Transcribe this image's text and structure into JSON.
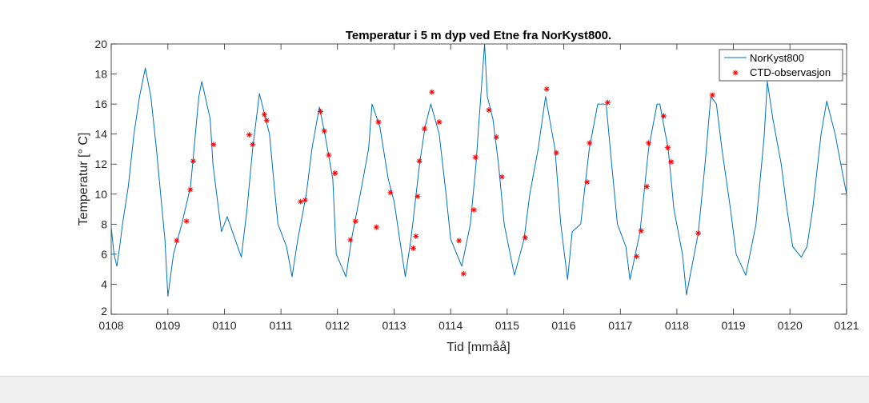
{
  "chart_data": {
    "type": "line",
    "title": "Temperatur i 5 m dyp ved Etne fra NorKyst800.",
    "xlabel": "Tid [mmåå]",
    "ylabel": "Temperatur [° C]",
    "ylabel_parts": {
      "main": "Temperatur [",
      "sup": "o",
      "end": " C]"
    },
    "xlim": [
      "2008-01-01",
      "2021-01-01"
    ],
    "ylim": [
      2,
      20
    ],
    "x_ticks": [
      {
        "date": "2008-01-01",
        "label": "0108"
      },
      {
        "date": "2009-01-01",
        "label": "0109"
      },
      {
        "date": "2010-01-01",
        "label": "0110"
      },
      {
        "date": "2011-01-01",
        "label": "0111"
      },
      {
        "date": "2012-01-01",
        "label": "0112"
      },
      {
        "date": "2013-01-01",
        "label": "0113"
      },
      {
        "date": "2014-01-01",
        "label": "0114"
      },
      {
        "date": "2015-01-01",
        "label": "0115"
      },
      {
        "date": "2016-01-01",
        "label": "0116"
      },
      {
        "date": "2017-01-01",
        "label": "0117"
      },
      {
        "date": "2018-01-01",
        "label": "0118"
      },
      {
        "date": "2019-01-01",
        "label": "0119"
      },
      {
        "date": "2020-01-01",
        "label": "0120"
      },
      {
        "date": "2021-01-01",
        "label": "0121"
      }
    ],
    "y_ticks": [
      2,
      4,
      6,
      8,
      10,
      12,
      14,
      16,
      18,
      20
    ],
    "grid": false,
    "legend_position": "top-right",
    "series": [
      {
        "name": "NorKyst800",
        "style": "line",
        "color": "#0072bd",
        "points": [
          [
            "2008-01-01",
            7.8
          ],
          [
            "2008-01-19",
            6.0
          ],
          [
            "2008-02-06",
            5.2
          ],
          [
            "2008-02-25",
            6.5
          ],
          [
            "2008-03-14",
            8.0
          ],
          [
            "2008-04-20",
            10.5
          ],
          [
            "2008-05-27",
            14.0
          ],
          [
            "2008-07-02",
            16.5
          ],
          [
            "2008-08-08",
            18.4
          ],
          [
            "2008-09-13",
            16.5
          ],
          [
            "2008-10-19",
            13.0
          ],
          [
            "2008-11-24",
            9.0
          ],
          [
            "2008-12-13",
            7.0
          ],
          [
            "2009-01-01",
            3.2
          ],
          [
            "2009-02-06",
            6.0
          ],
          [
            "2009-04-01",
            8.0
          ],
          [
            "2009-05-27",
            10.5
          ],
          [
            "2009-07-20",
            16.5
          ],
          [
            "2009-08-08",
            17.5
          ],
          [
            "2009-10-01",
            15.0
          ],
          [
            "2009-10-19",
            12.0
          ],
          [
            "2009-11-24",
            9.0
          ],
          [
            "2009-12-13",
            7.5
          ],
          [
            "2010-01-19",
            8.5
          ],
          [
            "2010-04-20",
            5.8
          ],
          [
            "2010-05-27",
            9.0
          ],
          [
            "2010-07-02",
            13.0
          ],
          [
            "2010-08-15",
            16.7
          ],
          [
            "2010-10-19",
            14.0
          ],
          [
            "2010-11-24",
            10.0
          ],
          [
            "2010-12-13",
            8.0
          ],
          [
            "2011-02-06",
            6.5
          ],
          [
            "2011-03-14",
            4.5
          ],
          [
            "2011-04-20",
            7.0
          ],
          [
            "2011-06-14",
            10.0
          ],
          [
            "2011-07-20",
            13.0
          ],
          [
            "2011-09-06",
            15.8
          ],
          [
            "2011-10-12",
            14.0
          ],
          [
            "2011-12-02",
            11.0
          ],
          [
            "2011-12-24",
            6.0
          ],
          [
            "2012-02-25",
            4.5
          ],
          [
            "2012-04-01",
            7.0
          ],
          [
            "2012-05-27",
            10.0
          ],
          [
            "2012-07-20",
            13.0
          ],
          [
            "2012-08-11",
            16.0
          ],
          [
            "2012-10-01",
            14.5
          ],
          [
            "2012-11-24",
            11.0
          ],
          [
            "2013-01-01",
            9.5
          ],
          [
            "2013-02-06",
            7.0
          ],
          [
            "2013-03-14",
            4.5
          ],
          [
            "2013-04-20",
            7.0
          ],
          [
            "2013-06-14",
            12.0
          ],
          [
            "2013-07-20",
            14.5
          ],
          [
            "2013-08-26",
            16.0
          ],
          [
            "2013-10-19",
            14.0
          ],
          [
            "2013-12-02",
            10.0
          ],
          [
            "2014-01-01",
            7.0
          ],
          [
            "2014-03-14",
            5.2
          ],
          [
            "2014-05-08",
            8.0
          ],
          [
            "2014-06-14",
            12.0
          ],
          [
            "2014-07-02",
            14.7
          ],
          [
            "2014-08-08",
            20.0
          ],
          [
            "2014-08-26",
            16.5
          ],
          [
            "2014-10-01",
            15.0
          ],
          [
            "2014-11-06",
            12.0
          ],
          [
            "2014-12-13",
            8.0
          ],
          [
            "2015-02-17",
            4.6
          ],
          [
            "2015-04-20",
            7.0
          ],
          [
            "2015-05-27",
            10.0
          ],
          [
            "2015-07-20",
            13.0
          ],
          [
            "2015-09-06",
            16.5
          ],
          [
            "2015-11-06",
            13.0
          ],
          [
            "2015-12-13",
            8.0
          ],
          [
            "2016-01-26",
            4.3
          ],
          [
            "2016-02-25",
            7.5
          ],
          [
            "2016-04-20",
            8.0
          ],
          [
            "2016-06-14",
            13.0
          ],
          [
            "2016-08-08",
            16.0
          ],
          [
            "2016-10-01",
            16.0
          ],
          [
            "2016-11-06",
            12.0
          ],
          [
            "2016-12-13",
            8.0
          ],
          [
            "2017-02-06",
            6.5
          ],
          [
            "2017-03-04",
            4.3
          ],
          [
            "2017-05-08",
            7.5
          ],
          [
            "2017-07-02",
            13.0
          ],
          [
            "2017-08-26",
            16.0
          ],
          [
            "2017-09-13",
            16.0
          ],
          [
            "2017-11-06",
            13.0
          ],
          [
            "2017-12-13",
            9.0
          ],
          [
            "2018-02-06",
            6.0
          ],
          [
            "2018-03-04",
            3.3
          ],
          [
            "2018-05-19",
            7.4
          ],
          [
            "2018-07-02",
            12.0
          ],
          [
            "2018-08-08",
            16.5
          ],
          [
            "2018-09-13",
            16.0
          ],
          [
            "2018-10-19",
            13.0
          ],
          [
            "2018-12-13",
            9.0
          ],
          [
            "2019-01-19",
            6.0
          ],
          [
            "2019-03-22",
            4.6
          ],
          [
            "2019-05-27",
            8.0
          ],
          [
            "2019-07-02",
            12.0
          ],
          [
            "2019-07-20",
            14.0
          ],
          [
            "2019-08-08",
            17.5
          ],
          [
            "2019-09-13",
            15.0
          ],
          [
            "2019-11-06",
            12.0
          ],
          [
            "2019-12-13",
            9.0
          ],
          [
            "2020-01-19",
            6.5
          ],
          [
            "2020-03-14",
            5.8
          ],
          [
            "2020-04-20",
            6.5
          ],
          [
            "2020-05-27",
            9.0
          ],
          [
            "2020-07-20",
            14.0
          ],
          [
            "2020-08-26",
            16.2
          ],
          [
            "2020-10-19",
            14.0
          ],
          [
            "2020-12-13",
            11.0
          ],
          [
            "2021-01-01",
            10.0
          ]
        ]
      },
      {
        "name": "CTD-observasjon",
        "style": "marker-asterisk",
        "color": "#ff0000",
        "points": [
          [
            "2009-02-27",
            6.9
          ],
          [
            "2009-05-01",
            8.2
          ],
          [
            "2009-05-26",
            10.3
          ],
          [
            "2009-06-13",
            12.2
          ],
          [
            "2009-10-23",
            13.3
          ],
          [
            "2010-06-10",
            13.95
          ],
          [
            "2010-07-02",
            13.3
          ],
          [
            "2010-09-16",
            15.3
          ],
          [
            "2010-10-01",
            14.9
          ],
          [
            "2011-05-08",
            9.5
          ],
          [
            "2011-06-06",
            9.6
          ],
          [
            "2011-09-13",
            15.5
          ],
          [
            "2011-10-08",
            14.2
          ],
          [
            "2011-11-06",
            12.6
          ],
          [
            "2011-12-16",
            11.4
          ],
          [
            "2012-03-24",
            6.95
          ],
          [
            "2012-04-26",
            8.2
          ],
          [
            "2012-09-08",
            7.8
          ],
          [
            "2012-09-22",
            14.8
          ],
          [
            "2012-12-08",
            10.1
          ],
          [
            "2013-05-04",
            6.4
          ],
          [
            "2013-05-22",
            7.2
          ],
          [
            "2013-06-02",
            9.85
          ],
          [
            "2013-06-13",
            12.2
          ],
          [
            "2013-07-16",
            14.35
          ],
          [
            "2013-09-02",
            16.8
          ],
          [
            "2013-10-19",
            14.8
          ],
          [
            "2014-02-24",
            6.9
          ],
          [
            "2014-03-25",
            4.7
          ],
          [
            "2014-05-30",
            8.95
          ],
          [
            "2014-06-10",
            12.45
          ],
          [
            "2014-09-05",
            15.6
          ],
          [
            "2014-10-23",
            13.8
          ],
          [
            "2014-11-28",
            11.15
          ],
          [
            "2015-04-27",
            7.1
          ],
          [
            "2015-09-13",
            17.0
          ],
          [
            "2015-11-14",
            12.75
          ],
          [
            "2016-06-01",
            10.8
          ],
          [
            "2016-06-16",
            13.4
          ],
          [
            "2016-10-11",
            16.1
          ],
          [
            "2017-04-16",
            5.85
          ],
          [
            "2017-05-15",
            7.55
          ],
          [
            "2017-06-21",
            10.5
          ],
          [
            "2017-07-02",
            13.4
          ],
          [
            "2017-10-08",
            15.2
          ],
          [
            "2017-11-03",
            13.1
          ],
          [
            "2017-11-25",
            12.15
          ],
          [
            "2018-05-19",
            7.4
          ],
          [
            "2018-08-18",
            16.6
          ]
        ]
      }
    ]
  }
}
